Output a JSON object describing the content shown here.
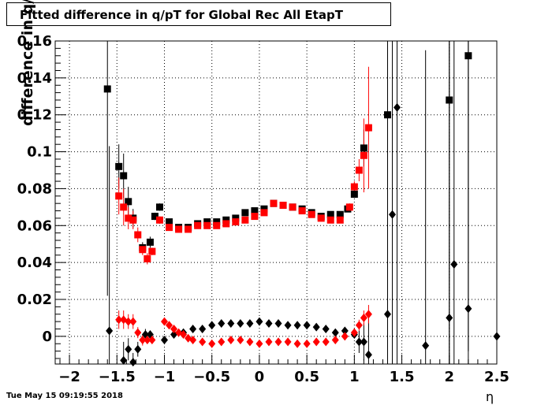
{
  "title": "Fitted difference in q/pT for Global Rec All EtapT",
  "timestamp": "Tue May 15 09:19:55 2018",
  "chart_data": {
    "type": "scatter",
    "title": "Fitted difference in q/pT for Global Rec All EtapT",
    "xlabel": "η",
    "ylabel": "difference in q/pT",
    "xlim": [
      -2.15,
      2.5
    ],
    "ylim": [
      -0.015,
      0.16
    ],
    "grid": true,
    "x_ticks": [
      -2,
      -1.5,
      -1,
      -0.5,
      0,
      0.5,
      1,
      1.5,
      2,
      2.5
    ],
    "x_tick_labels": [
      "−2",
      "−1.5",
      "−1",
      "−0.5",
      "0",
      "0.5",
      "1",
      "1.5",
      "2",
      "2.5"
    ],
    "y_ticks": [
      0,
      0.02,
      0.04,
      0.06,
      0.08,
      0.1,
      0.12,
      0.14,
      0.16
    ],
    "y_tick_labels": [
      "0",
      "0.02",
      "0.04",
      "0.06",
      "0.08",
      "0.1",
      "0.12",
      "0.14",
      "0.16"
    ],
    "series": [
      {
        "marker": "square",
        "color": "#000000",
        "points": [
          {
            "x": -1.6,
            "y": 0.134,
            "err": 0.112
          },
          {
            "x": -1.48,
            "y": 0.092,
            "err": 0.012
          },
          {
            "x": -1.43,
            "y": 0.087,
            "err": 0.012
          },
          {
            "x": -1.38,
            "y": 0.073,
            "err": 0.008
          },
          {
            "x": -1.33,
            "y": 0.064,
            "err": 0.005
          },
          {
            "x": -1.23,
            "y": 0.048,
            "err": 0.003
          },
          {
            "x": -1.15,
            "y": 0.051,
            "err": 0.003
          },
          {
            "x": -1.1,
            "y": 0.065,
            "err": 0.002
          },
          {
            "x": -1.05,
            "y": 0.07,
            "err": 0.002
          },
          {
            "x": -0.95,
            "y": 0.062,
            "err": 0.001
          },
          {
            "x": -0.85,
            "y": 0.059,
            "err": 0.001
          },
          {
            "x": -0.75,
            "y": 0.059,
            "err": 0.001
          },
          {
            "x": -0.65,
            "y": 0.061,
            "err": 0.001
          },
          {
            "x": -0.55,
            "y": 0.062,
            "err": 0.001
          },
          {
            "x": -0.45,
            "y": 0.062,
            "err": 0.001
          },
          {
            "x": -0.35,
            "y": 0.063,
            "err": 0.001
          },
          {
            "x": -0.25,
            "y": 0.064,
            "err": 0.001
          },
          {
            "x": -0.15,
            "y": 0.067,
            "err": 0.001
          },
          {
            "x": -0.05,
            "y": 0.068,
            "err": 0.001
          },
          {
            "x": 0.05,
            "y": 0.069,
            "err": 0.001
          },
          {
            "x": 0.15,
            "y": 0.072,
            "err": 0.001
          },
          {
            "x": 0.25,
            "y": 0.071,
            "err": 0.001
          },
          {
            "x": 0.35,
            "y": 0.07,
            "err": 0.001
          },
          {
            "x": 0.45,
            "y": 0.069,
            "err": 0.001
          },
          {
            "x": 0.55,
            "y": 0.067,
            "err": 0.001
          },
          {
            "x": 0.65,
            "y": 0.065,
            "err": 0.001
          },
          {
            "x": 0.75,
            "y": 0.066,
            "err": 0.001
          },
          {
            "x": 0.85,
            "y": 0.066,
            "err": 0.001
          },
          {
            "x": 0.93,
            "y": 0.069,
            "err": 0.001
          },
          {
            "x": 1.0,
            "y": 0.077,
            "err": 0.002
          },
          {
            "x": 1.1,
            "y": 0.102,
            "err": 0.01
          },
          {
            "x": 1.35,
            "y": 0.12,
            "err": 0.16
          },
          {
            "x": 2.0,
            "y": 0.128,
            "err": 0.16
          },
          {
            "x": 2.2,
            "y": 0.152,
            "err": 0.16
          }
        ]
      },
      {
        "marker": "square",
        "color": "#ff0000",
        "points": [
          {
            "x": -1.48,
            "y": 0.076,
            "err": 0.01
          },
          {
            "x": -1.43,
            "y": 0.07,
            "err": 0.01
          },
          {
            "x": -1.38,
            "y": 0.064,
            "err": 0.006
          },
          {
            "x": -1.33,
            "y": 0.063,
            "err": 0.005
          },
          {
            "x": -1.28,
            "y": 0.055,
            "err": 0.004
          },
          {
            "x": -1.23,
            "y": 0.047,
            "err": 0.003
          },
          {
            "x": -1.18,
            "y": 0.042,
            "err": 0.003
          },
          {
            "x": -1.13,
            "y": 0.046,
            "err": 0.002
          },
          {
            "x": -1.05,
            "y": 0.063,
            "err": 0.002
          },
          {
            "x": -0.95,
            "y": 0.059,
            "err": 0.001
          },
          {
            "x": -0.85,
            "y": 0.058,
            "err": 0.001
          },
          {
            "x": -0.75,
            "y": 0.058,
            "err": 0.001
          },
          {
            "x": -0.65,
            "y": 0.06,
            "err": 0.001
          },
          {
            "x": -0.55,
            "y": 0.06,
            "err": 0.001
          },
          {
            "x": -0.45,
            "y": 0.06,
            "err": 0.001
          },
          {
            "x": -0.35,
            "y": 0.061,
            "err": 0.001
          },
          {
            "x": -0.25,
            "y": 0.062,
            "err": 0.001
          },
          {
            "x": -0.15,
            "y": 0.063,
            "err": 0.001
          },
          {
            "x": -0.05,
            "y": 0.065,
            "err": 0.001
          },
          {
            "x": 0.05,
            "y": 0.067,
            "err": 0.001
          },
          {
            "x": 0.15,
            "y": 0.072,
            "err": 0.001
          },
          {
            "x": 0.25,
            "y": 0.071,
            "err": 0.001
          },
          {
            "x": 0.35,
            "y": 0.07,
            "err": 0.001
          },
          {
            "x": 0.45,
            "y": 0.068,
            "err": 0.001
          },
          {
            "x": 0.55,
            "y": 0.066,
            "err": 0.001
          },
          {
            "x": 0.65,
            "y": 0.064,
            "err": 0.001
          },
          {
            "x": 0.75,
            "y": 0.063,
            "err": 0.001
          },
          {
            "x": 0.85,
            "y": 0.063,
            "err": 0.001
          },
          {
            "x": 0.95,
            "y": 0.07,
            "err": 0.002
          },
          {
            "x": 1.0,
            "y": 0.081,
            "err": 0.003
          },
          {
            "x": 1.05,
            "y": 0.09,
            "err": 0.006
          },
          {
            "x": 1.1,
            "y": 0.098,
            "err": 0.02
          },
          {
            "x": 1.15,
            "y": 0.113,
            "err": 0.033
          }
        ]
      },
      {
        "marker": "diamond",
        "color": "#000000",
        "points": [
          {
            "x": -1.58,
            "y": 0.003,
            "err": 0.1
          },
          {
            "x": -1.43,
            "y": -0.013,
            "err": 0.01
          },
          {
            "x": -1.38,
            "y": -0.007,
            "err": 0.006
          },
          {
            "x": -1.33,
            "y": -0.014,
            "err": 0.005
          },
          {
            "x": -1.28,
            "y": -0.007,
            "err": 0.004
          },
          {
            "x": -1.2,
            "y": 0.001,
            "err": 0.003
          },
          {
            "x": -1.15,
            "y": 0.001,
            "err": 0.002
          },
          {
            "x": -1.0,
            "y": -0.002,
            "err": 0.002
          },
          {
            "x": -0.9,
            "y": 0.001,
            "err": 0.001
          },
          {
            "x": -0.8,
            "y": 0.002,
            "err": 0.001
          },
          {
            "x": -0.7,
            "y": 0.004,
            "err": 0.001
          },
          {
            "x": -0.6,
            "y": 0.004,
            "err": 0.001
          },
          {
            "x": -0.5,
            "y": 0.006,
            "err": 0.001
          },
          {
            "x": -0.4,
            "y": 0.007,
            "err": 0.001
          },
          {
            "x": -0.3,
            "y": 0.007,
            "err": 0.001
          },
          {
            "x": -0.2,
            "y": 0.007,
            "err": 0.001
          },
          {
            "x": -0.1,
            "y": 0.007,
            "err": 0.001
          },
          {
            "x": 0.0,
            "y": 0.008,
            "err": 0.001
          },
          {
            "x": 0.1,
            "y": 0.007,
            "err": 0.001
          },
          {
            "x": 0.2,
            "y": 0.007,
            "err": 0.001
          },
          {
            "x": 0.3,
            "y": 0.006,
            "err": 0.001
          },
          {
            "x": 0.4,
            "y": 0.006,
            "err": 0.001
          },
          {
            "x": 0.5,
            "y": 0.006,
            "err": 0.001
          },
          {
            "x": 0.6,
            "y": 0.005,
            "err": 0.001
          },
          {
            "x": 0.7,
            "y": 0.004,
            "err": 0.001
          },
          {
            "x": 0.8,
            "y": 0.002,
            "err": 0.001
          },
          {
            "x": 0.9,
            "y": 0.003,
            "err": 0.001
          },
          {
            "x": 1.0,
            "y": 0.001,
            "err": 0.002
          },
          {
            "x": 1.05,
            "y": -0.003,
            "err": 0.006
          },
          {
            "x": 1.1,
            "y": -0.003,
            "err": 0.01
          },
          {
            "x": 1.15,
            "y": -0.01,
            "err": 0.02
          },
          {
            "x": 1.35,
            "y": 0.012,
            "err": 0.16
          },
          {
            "x": 1.4,
            "y": 0.066,
            "err": 0.16
          },
          {
            "x": 1.45,
            "y": 0.124,
            "err": 0.16
          },
          {
            "x": 1.75,
            "y": -0.005,
            "err": 0.16
          },
          {
            "x": 2.0,
            "y": 0.01,
            "err": 0.16
          },
          {
            "x": 2.05,
            "y": 0.039,
            "err": 0.16
          },
          {
            "x": 2.2,
            "y": 0.015,
            "err": 0.16
          },
          {
            "x": 2.5,
            "y": 0.0,
            "err": 0.16
          }
        ]
      },
      {
        "marker": "diamond",
        "color": "#ff0000",
        "points": [
          {
            "x": -1.48,
            "y": 0.009,
            "err": 0.005
          },
          {
            "x": -1.43,
            "y": 0.009,
            "err": 0.005
          },
          {
            "x": -1.38,
            "y": 0.008,
            "err": 0.004
          },
          {
            "x": -1.33,
            "y": 0.008,
            "err": 0.004
          },
          {
            "x": -1.28,
            "y": 0.002,
            "err": 0.003
          },
          {
            "x": -1.23,
            "y": -0.002,
            "err": 0.003
          },
          {
            "x": -1.18,
            "y": -0.002,
            "err": 0.002
          },
          {
            "x": -1.13,
            "y": -0.002,
            "err": 0.002
          },
          {
            "x": -1.0,
            "y": 0.008,
            "err": 0.002
          },
          {
            "x": -0.95,
            "y": 0.006,
            "err": 0.001
          },
          {
            "x": -0.9,
            "y": 0.004,
            "err": 0.001
          },
          {
            "x": -0.85,
            "y": 0.002,
            "err": 0.001
          },
          {
            "x": -0.8,
            "y": 0.001,
            "err": 0.001
          },
          {
            "x": -0.75,
            "y": -0.001,
            "err": 0.001
          },
          {
            "x": -0.7,
            "y": -0.002,
            "err": 0.001
          },
          {
            "x": -0.6,
            "y": -0.003,
            "err": 0.001
          },
          {
            "x": -0.5,
            "y": -0.004,
            "err": 0.001
          },
          {
            "x": -0.4,
            "y": -0.003,
            "err": 0.001
          },
          {
            "x": -0.3,
            "y": -0.002,
            "err": 0.001
          },
          {
            "x": -0.2,
            "y": -0.002,
            "err": 0.001
          },
          {
            "x": -0.1,
            "y": -0.003,
            "err": 0.001
          },
          {
            "x": 0.0,
            "y": -0.004,
            "err": 0.001
          },
          {
            "x": 0.1,
            "y": -0.003,
            "err": 0.001
          },
          {
            "x": 0.2,
            "y": -0.003,
            "err": 0.001
          },
          {
            "x": 0.3,
            "y": -0.003,
            "err": 0.001
          },
          {
            "x": 0.4,
            "y": -0.004,
            "err": 0.001
          },
          {
            "x": 0.5,
            "y": -0.004,
            "err": 0.001
          },
          {
            "x": 0.6,
            "y": -0.003,
            "err": 0.001
          },
          {
            "x": 0.7,
            "y": -0.003,
            "err": 0.001
          },
          {
            "x": 0.8,
            "y": -0.002,
            "err": 0.001
          },
          {
            "x": 0.9,
            "y": 0.0,
            "err": 0.001
          },
          {
            "x": 1.0,
            "y": 0.002,
            "err": 0.002
          },
          {
            "x": 1.05,
            "y": 0.006,
            "err": 0.003
          },
          {
            "x": 1.1,
            "y": 0.01,
            "err": 0.004
          },
          {
            "x": 1.15,
            "y": 0.012,
            "err": 0.005
          }
        ]
      }
    ]
  }
}
